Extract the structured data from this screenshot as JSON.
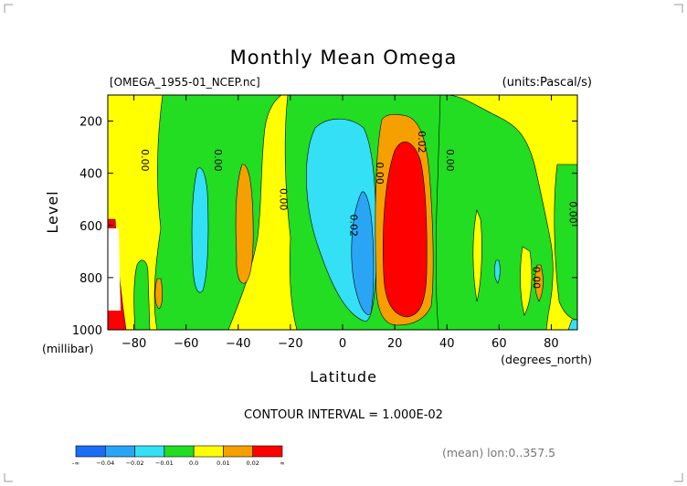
{
  "chart_data": {
    "type": "heatmap",
    "title": "Monthly Mean Omega",
    "file_label": "[OMEGA_1955-01_NCEP.nc]",
    "units_label": "(units:Pascal/s)",
    "xlabel": "Latitude",
    "x_units": "(degrees_north)",
    "ylabel": "Level",
    "y_units": "(millibar)",
    "x_ticks": [
      -80,
      -60,
      -40,
      -20,
      0,
      20,
      40,
      60,
      80
    ],
    "y_ticks": [
      200,
      400,
      600,
      800,
      1000
    ],
    "xlim": [
      -90,
      90
    ],
    "ylim": [
      1000,
      100
    ],
    "footer": "CONTOUR INTERVAL = 1.000E-02",
    "mean_note": "(mean) lon:0..357.5",
    "colorbar": {
      "labels": [
        "-∞",
        "−0.04",
        "−0.02",
        "−0.01",
        "0.0",
        "0.01",
        "0.02",
        "∞"
      ],
      "colors": [
        "#1a6ef5",
        "#2aa5f5",
        "#33e0f5",
        "#22dd22",
        "#ffff00",
        "#f5a000",
        "#ff0000"
      ]
    },
    "contour_labels": [
      {
        "text": "0.00",
        "lat": -77,
        "level": 350
      },
      {
        "text": "0.00",
        "lat": -49,
        "level": 350
      },
      {
        "text": "0.00",
        "lat": -24,
        "level": 500
      },
      {
        "text": "0.00",
        "lat": 13,
        "level": 400
      },
      {
        "text": "0.02",
        "lat": 29,
        "level": 280
      },
      {
        "text": "0.00",
        "lat": 40,
        "level": 350
      },
      {
        "text": "0.02",
        "lat": 3,
        "level": 600
      },
      {
        "text": "0.00",
        "lat": 73,
        "level": 800
      },
      {
        "text": "0.00",
        "lat": 87,
        "level": 550
      }
    ],
    "regions": [
      {
        "value_class": "0.0 to 0.01",
        "color": "#ffff00",
        "lat_range": [
          -90,
          90
        ],
        "level_range": [
          100,
          1000
        ]
      },
      {
        "value_class": "-0.01 to 0.0",
        "color": "#22dd22",
        "lat_range": [
          -70,
          -15
        ],
        "level_range": [
          100,
          1000
        ]
      },
      {
        "value_class": "0.01 to 0.02",
        "color": "#f5a000",
        "lat_range": [
          -45,
          -37
        ],
        "level_range": [
          330,
          800
        ]
      },
      {
        "value_class": "-0.02 to -0.01",
        "color": "#33e0f5",
        "lat_range": [
          -58,
          -51
        ],
        "level_range": [
          370,
          800
        ]
      },
      {
        "value_class": "-0.01 to 0.0",
        "color": "#22dd22",
        "lat_range": [
          -18,
          37
        ],
        "level_range": [
          100,
          1000
        ]
      },
      {
        "value_class": "-0.02 to -0.01",
        "color": "#33e0f5",
        "lat_range": [
          -10,
          12
        ],
        "level_range": [
          170,
          960
        ]
      },
      {
        "value_class": "-0.04 to -0.02",
        "color": "#2aa5f5",
        "lat_range": [
          3,
          12
        ],
        "level_range": [
          540,
          950
        ]
      },
      {
        "value_class": "0.01 to 0.02",
        "color": "#f5a000",
        "lat_range": [
          13,
          33
        ],
        "level_range": [
          160,
          970
        ]
      },
      {
        "value_class": "above 0.02",
        "color": "#ff0000",
        "lat_range": [
          15,
          32
        ],
        "level_range": [
          240,
          940
        ]
      },
      {
        "value_class": "-0.01 to 0.0",
        "color": "#22dd22",
        "lat_range": [
          40,
          85
        ],
        "level_range": [
          100,
          1000
        ]
      },
      {
        "value_class": "0.01 to 0.02",
        "color": "#f5a000",
        "lat_range": [
          72,
          78
        ],
        "level_range": [
          760,
          880
        ]
      },
      {
        "value_class": "above 0.02",
        "color": "#ff0000",
        "lat_range": [
          -90,
          -86
        ],
        "level_range": [
          560,
          1000
        ]
      }
    ]
  }
}
